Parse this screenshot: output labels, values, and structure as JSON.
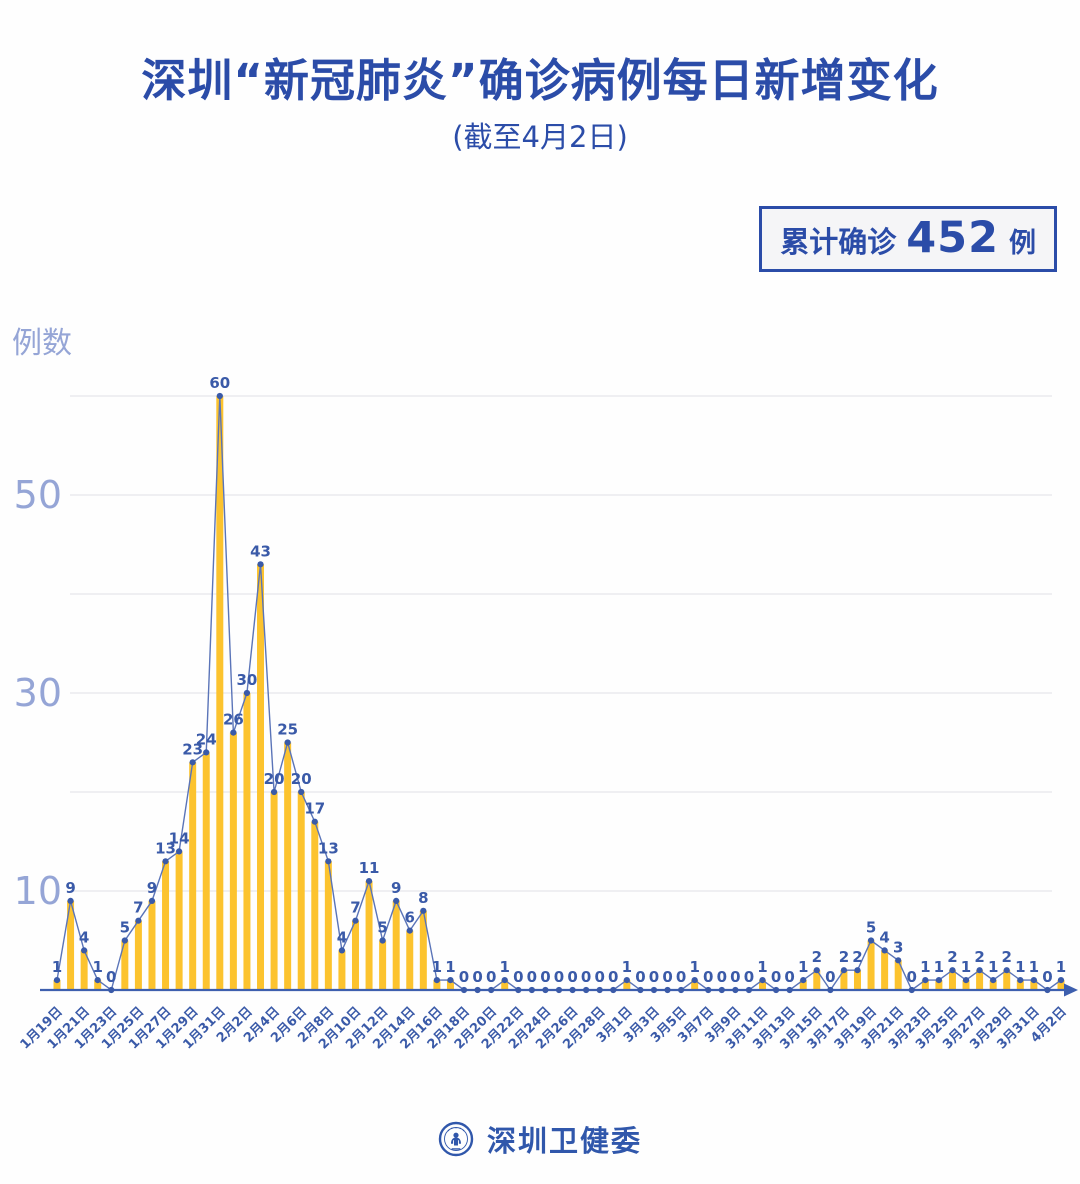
{
  "header": {
    "title": "深圳“新冠肺炎”确诊病例每日新增变化",
    "subtitle": "(截至4月2日)"
  },
  "summary_badge": {
    "label": "累计确诊",
    "value": "452",
    "unit": "例"
  },
  "footer": {
    "org_name": "深圳卫健委"
  },
  "colors": {
    "brand_blue": "#2b4ca8",
    "bar_yellow": "#fcc32e",
    "line_blue": "#5a74b8",
    "point_blue": "#3a5aa8",
    "axis_blue": "#3d5fae",
    "x_tick_blue": "#3a5aa8",
    "y_tick_periwinkle": "#95a5d6",
    "gridline_gray": "#eaeaee"
  },
  "chart_data": {
    "type": "bar",
    "title": "深圳“新冠肺炎”确诊病例每日新增变化",
    "subtitle": "(截至4月2日)",
    "xlabel": "",
    "ylabel": "例数",
    "ylim": [
      0,
      62
    ],
    "grid": true,
    "gridline_step": 10,
    "gridline_max": 60,
    "yticks_labeled": [
      10,
      30,
      50
    ],
    "x_tick_every": 2,
    "legend_position": "none",
    "cumulative_total": 452,
    "categories": [
      "1月19日",
      "1月20日",
      "1月21日",
      "1月22日",
      "1月23日",
      "1月24日",
      "1月25日",
      "1月26日",
      "1月27日",
      "1月28日",
      "1月29日",
      "1月30日",
      "1月31日",
      "2月1日",
      "2月2日",
      "2月3日",
      "2月4日",
      "2月5日",
      "2月6日",
      "2月7日",
      "2月8日",
      "2月9日",
      "2月10日",
      "2月11日",
      "2月12日",
      "2月13日",
      "2月14日",
      "2月15日",
      "2月16日",
      "2月17日",
      "2月18日",
      "2月19日",
      "2月20日",
      "2月21日",
      "2月22日",
      "2月23日",
      "2月24日",
      "2月25日",
      "2月26日",
      "2月27日",
      "2月28日",
      "2月29日",
      "3月1日",
      "3月2日",
      "3月3日",
      "3月4日",
      "3月5日",
      "3月6日",
      "3月7日",
      "3月8日",
      "3月9日",
      "3月10日",
      "3月11日",
      "3月12日",
      "3月13日",
      "3月14日",
      "3月15日",
      "3月16日",
      "3月17日",
      "3月18日",
      "3月19日",
      "3月20日",
      "3月21日",
      "3月22日",
      "3月23日",
      "3月24日",
      "3月25日",
      "3月26日",
      "3月27日",
      "3月28日",
      "3月29日",
      "3月30日",
      "3月31日",
      "4月1日",
      "4月2日"
    ],
    "values": [
      1,
      9,
      4,
      1,
      0,
      5,
      7,
      9,
      13,
      14,
      23,
      24,
      60,
      26,
      30,
      43,
      20,
      25,
      20,
      17,
      13,
      4,
      7,
      11,
      5,
      9,
      6,
      8,
      1,
      1,
      0,
      0,
      0,
      1,
      0,
      0,
      0,
      0,
      0,
      0,
      0,
      0,
      1,
      0,
      0,
      0,
      0,
      1,
      0,
      0,
      0,
      0,
      1,
      0,
      0,
      1,
      2,
      0,
      2,
      2,
      5,
      4,
      3,
      0,
      1,
      1,
      2,
      1,
      2,
      1,
      2,
      1,
      1,
      0,
      1
    ]
  }
}
